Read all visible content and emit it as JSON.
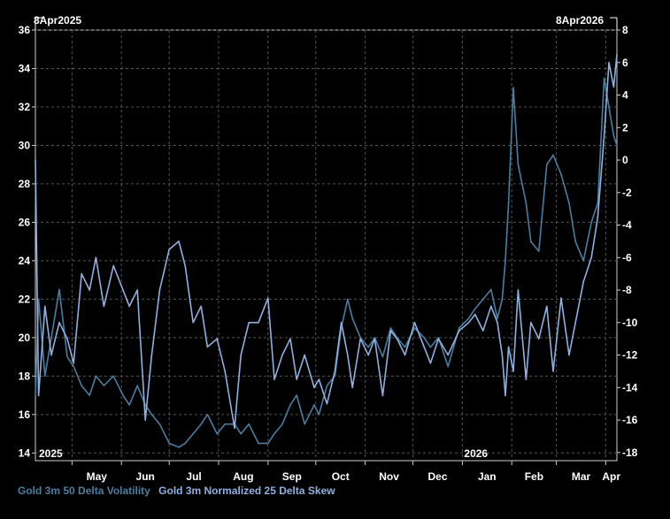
{
  "chart_data": {
    "type": "line",
    "range_start_label": "8Apr2025",
    "range_end_label": "8Apr2026",
    "year_labels": [
      "2025",
      "2026"
    ],
    "x_tick_labels": [
      "May",
      "Jun",
      "Jul",
      "Aug",
      "Sep",
      "Oct",
      "Nov",
      "Dec",
      "Jan",
      "Feb",
      "Mar",
      "Apr"
    ],
    "x_tick_dates": [
      "2025-05-01",
      "2025-06-01",
      "2025-07-01",
      "2025-08-01",
      "2025-09-01",
      "2025-10-01",
      "2025-11-01",
      "2025-12-01",
      "2026-01-01",
      "2026-02-01",
      "2026-03-01",
      "2026-04-01"
    ],
    "xlim": [
      "2025-04-08",
      "2026-04-08"
    ],
    "left_axis": {
      "ylim": [
        13.6,
        36
      ],
      "ticks": [
        14,
        16,
        18,
        20,
        22,
        24,
        26,
        28,
        30,
        32,
        34,
        36
      ]
    },
    "right_axis": {
      "ylim": [
        -18.5,
        8
      ],
      "ticks": [
        -18,
        -16,
        -14,
        -12,
        -10,
        -8,
        -6,
        -4,
        -2,
        0,
        2,
        4,
        6,
        8
      ]
    },
    "grid": true,
    "legend_position": "bottom-left",
    "series": [
      {
        "name": "Gold 3m 50 Delta Volatility",
        "axis": "left",
        "color": "#4a7ea0",
        "x": [
          "2025-04-08",
          "2025-04-10",
          "2025-04-14",
          "2025-04-18",
          "2025-04-23",
          "2025-04-28",
          "2025-05-02",
          "2025-05-07",
          "2025-05-12",
          "2025-05-16",
          "2025-05-21",
          "2025-05-27",
          "2025-06-02",
          "2025-06-06",
          "2025-06-11",
          "2025-06-16",
          "2025-06-20",
          "2025-06-25",
          "2025-07-01",
          "2025-07-07",
          "2025-07-11",
          "2025-07-16",
          "2025-07-21",
          "2025-07-25",
          "2025-07-31",
          "2025-08-05",
          "2025-08-11",
          "2025-08-15",
          "2025-08-20",
          "2025-08-26",
          "2025-09-01",
          "2025-09-05",
          "2025-09-10",
          "2025-09-15",
          "2025-09-19",
          "2025-09-24",
          "2025-09-30",
          "2025-10-03",
          "2025-10-08",
          "2025-10-13",
          "2025-10-17",
          "2025-10-21",
          "2025-10-24",
          "2025-10-29",
          "2025-11-03",
          "2025-11-07",
          "2025-11-12",
          "2025-11-17",
          "2025-11-21",
          "2025-11-26",
          "2025-12-02",
          "2025-12-08",
          "2025-12-12",
          "2025-12-17",
          "2025-12-23",
          "2025-12-30",
          "2026-01-05",
          "2026-01-09",
          "2026-01-14",
          "2026-01-19",
          "2026-01-23",
          "2026-01-26",
          "2026-01-28",
          "2026-01-30",
          "2026-02-02",
          "2026-02-05",
          "2026-02-10",
          "2026-02-13",
          "2026-02-18",
          "2026-02-23",
          "2026-02-27",
          "2026-03-04",
          "2026-03-09",
          "2026-03-13",
          "2026-03-18",
          "2026-03-23",
          "2026-03-27",
          "2026-03-31",
          "2026-04-03",
          "2026-04-06",
          "2026-04-08"
        ],
        "y": [
          17.0,
          22.0,
          18.0,
          20.0,
          22.5,
          19.0,
          18.5,
          17.5,
          17.0,
          18.0,
          17.5,
          18.0,
          17.0,
          16.5,
          17.5,
          16.5,
          16.0,
          15.5,
          14.5,
          14.3,
          14.5,
          15.0,
          15.5,
          16.0,
          15.0,
          15.5,
          15.5,
          15.0,
          15.5,
          14.5,
          14.5,
          15.0,
          15.5,
          16.5,
          17.0,
          15.5,
          16.5,
          16.0,
          17.5,
          18.0,
          20.5,
          22.0,
          21.0,
          20.0,
          19.5,
          20.0,
          19.0,
          20.5,
          20.0,
          19.5,
          20.5,
          20.0,
          19.5,
          20.0,
          18.5,
          20.5,
          21.0,
          21.5,
          22.0,
          22.5,
          21.0,
          22.0,
          24.0,
          27.0,
          33.0,
          29.0,
          27.0,
          25.0,
          24.5,
          29.0,
          29.5,
          28.5,
          27.0,
          25.0,
          24.0,
          26.0,
          27.0,
          33.5,
          32.0,
          30.5,
          30.0
        ]
      },
      {
        "name": "Gold 3m Normalized 25 Delta Skew",
        "axis": "right",
        "color": "#8fb0e0",
        "x": [
          "2025-04-08",
          "2025-04-10",
          "2025-04-14",
          "2025-04-18",
          "2025-04-23",
          "2025-04-28",
          "2025-05-02",
          "2025-05-07",
          "2025-05-12",
          "2025-05-16",
          "2025-05-21",
          "2025-05-27",
          "2025-06-02",
          "2025-06-06",
          "2025-06-11",
          "2025-06-16",
          "2025-06-20",
          "2025-06-25",
          "2025-07-01",
          "2025-07-07",
          "2025-07-11",
          "2025-07-16",
          "2025-07-21",
          "2025-07-25",
          "2025-07-31",
          "2025-08-05",
          "2025-08-11",
          "2025-08-15",
          "2025-08-20",
          "2025-08-26",
          "2025-09-01",
          "2025-09-05",
          "2025-09-10",
          "2025-09-15",
          "2025-09-19",
          "2025-09-24",
          "2025-09-30",
          "2025-10-03",
          "2025-10-08",
          "2025-10-13",
          "2025-10-17",
          "2025-10-21",
          "2025-10-24",
          "2025-10-29",
          "2025-11-03",
          "2025-11-07",
          "2025-11-12",
          "2025-11-17",
          "2025-11-21",
          "2025-11-26",
          "2025-12-02",
          "2025-12-08",
          "2025-12-12",
          "2025-12-17",
          "2025-12-23",
          "2025-12-30",
          "2026-01-05",
          "2026-01-09",
          "2026-01-14",
          "2026-01-19",
          "2026-01-23",
          "2026-01-26",
          "2026-01-28",
          "2026-01-30",
          "2026-02-02",
          "2026-02-05",
          "2026-02-10",
          "2026-02-13",
          "2026-02-18",
          "2026-02-23",
          "2026-02-27",
          "2026-03-04",
          "2026-03-09",
          "2026-03-13",
          "2026-03-18",
          "2026-03-23",
          "2026-03-27",
          "2026-03-31",
          "2026-04-03",
          "2026-04-06",
          "2026-04-08"
        ],
        "y": [
          0.0,
          -14.5,
          -9.0,
          -12.0,
          -10.0,
          -11.0,
          -12.5,
          -7.0,
          -8.0,
          -6.0,
          -9.0,
          -6.5,
          -8.0,
          -9.0,
          -8.0,
          -16.0,
          -12.0,
          -8.0,
          -5.5,
          -5.0,
          -6.5,
          -10.0,
          -9.0,
          -11.5,
          -11.0,
          -13.0,
          -16.5,
          -12.0,
          -10.0,
          -10.0,
          -8.5,
          -13.5,
          -12.0,
          -11.0,
          -13.5,
          -12.0,
          -14.0,
          -13.5,
          -15.0,
          -13.0,
          -10.0,
          -12.0,
          -14.0,
          -11.0,
          -12.0,
          -11.0,
          -14.5,
          -10.5,
          -11.0,
          -12.0,
          -10.0,
          -11.5,
          -12.5,
          -11.0,
          -12.0,
          -10.5,
          -10.0,
          -9.5,
          -10.5,
          -9.0,
          -10.0,
          -12.0,
          -14.5,
          -11.5,
          -13.0,
          -8.0,
          -13.5,
          -10.0,
          -11.0,
          -9.0,
          -13.0,
          -8.5,
          -12.0,
          -10.0,
          -7.5,
          -6.0,
          -3.5,
          1.5,
          6.0,
          4.5,
          6.5
        ]
      }
    ]
  }
}
